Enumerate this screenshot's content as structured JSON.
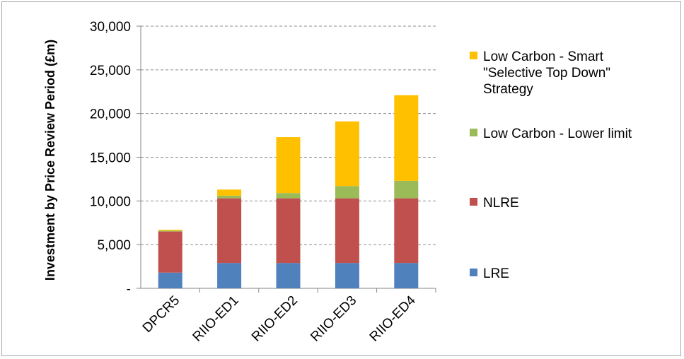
{
  "chart_data": {
    "type": "bar",
    "stacked": true,
    "title": "",
    "xlabel": "",
    "ylabel": "Investment by Price Review Period (£m)",
    "ylim": [
      0,
      30000
    ],
    "yticks": [
      0,
      5000,
      10000,
      15000,
      20000,
      25000,
      30000
    ],
    "ytick_labels": [
      "-",
      "5,000",
      "10,000",
      "15,000",
      "20,000",
      "25,000",
      "30,000"
    ],
    "grid": "horizontal-dashed",
    "legend_position": "right",
    "categories": [
      "DPCR5",
      "RIIO-ED1",
      "RIIO-ED2",
      "RIIO-ED3",
      "RIIO-ED4"
    ],
    "series": [
      {
        "name": "LRE",
        "color": "#4f81bd",
        "values": [
          1800,
          2900,
          2900,
          2900,
          2900
        ]
      },
      {
        "name": "NLRE",
        "color": "#c0504d",
        "values": [
          4700,
          7400,
          7400,
          7400,
          7400
        ]
      },
      {
        "name": "Low Carbon - Lower limit",
        "color": "#9bbb59",
        "values": [
          100,
          300,
          600,
          1400,
          2000
        ]
      },
      {
        "name": "Low Carbon - Smart \"Selective Top Down\" Strategy",
        "color": "#ffc000",
        "values": [
          100,
          700,
          6400,
          7400,
          9800
        ]
      }
    ],
    "legend": [
      {
        "series_index": 3,
        "lines": [
          "Low Carbon - Smart",
          "\"Selective Top Down\"",
          "Strategy"
        ]
      },
      {
        "series_index": 2,
        "lines": [
          "Low Carbon - Lower limit"
        ]
      },
      {
        "series_index": 1,
        "lines": [
          "NLRE"
        ]
      },
      {
        "series_index": 0,
        "lines": [
          "LRE"
        ]
      }
    ]
  }
}
